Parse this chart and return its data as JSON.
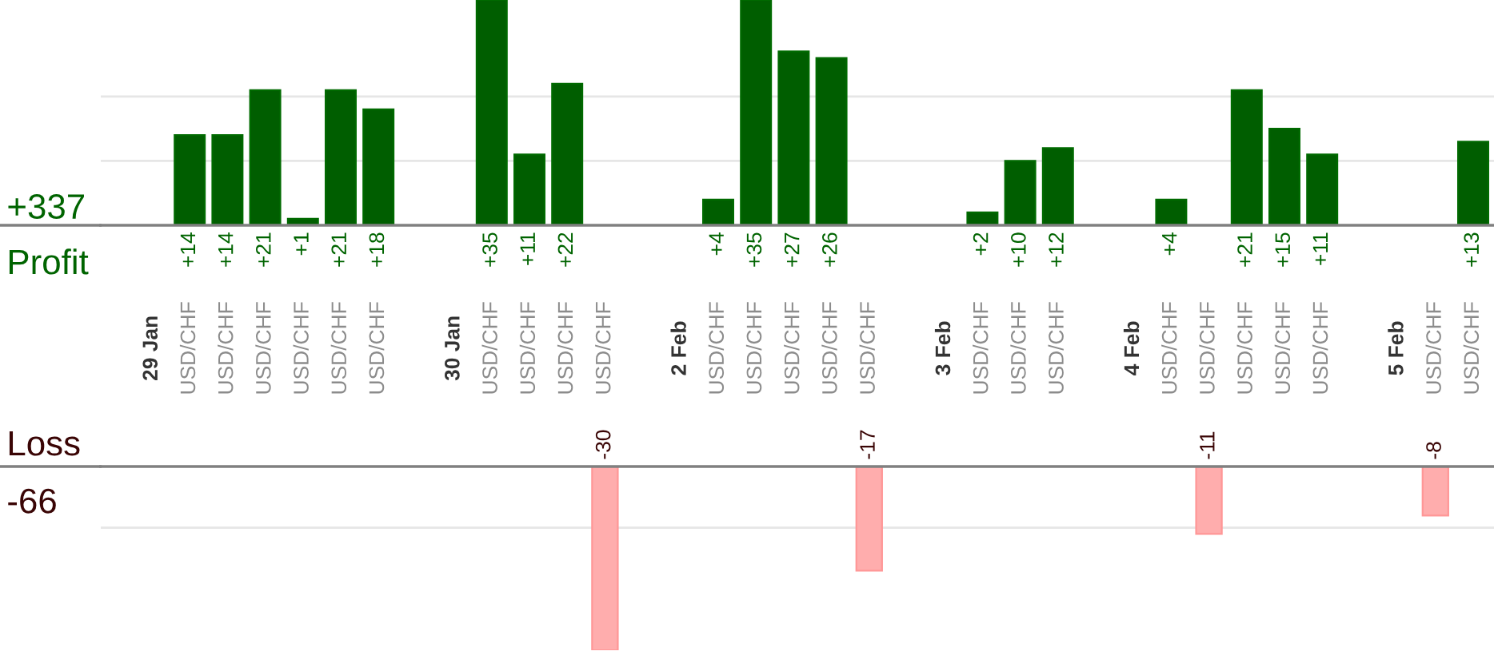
{
  "chart_data": [
    {
      "type": "bar",
      "title": "Profit",
      "annotations": [
        "+337"
      ],
      "categories": [
        "29 Jan",
        "USD/CHF",
        "USD/CHF",
        "USD/CHF",
        "USD/CHF",
        "USD/CHF",
        "USD/CHF",
        null,
        "30 Jan",
        "USD/CHF",
        "USD/CHF",
        "USD/CHF",
        "USD/CHF",
        null,
        "2 Feb",
        "USD/CHF",
        "USD/CHF",
        "USD/CHF",
        "USD/CHF",
        "USD/CHF",
        null,
        "3 Feb",
        "USD/CHF",
        "USD/CHF",
        "USD/CHF",
        null,
        "4 Feb",
        "USD/CHF",
        "USD/CHF",
        "USD/CHF",
        "USD/CHF",
        "USD/CHF",
        null,
        "5 Feb",
        "USD/CHF",
        "USD/CHF"
      ],
      "values": [
        null,
        14,
        14,
        21,
        1,
        21,
        18,
        null,
        null,
        35,
        11,
        22,
        null,
        null,
        null,
        4,
        35,
        27,
        26,
        null,
        null,
        null,
        2,
        10,
        12,
        null,
        null,
        4,
        null,
        21,
        15,
        11,
        null,
        null,
        null,
        13
      ],
      "value_labels": [
        null,
        "+14",
        "+14",
        "+21",
        "+1",
        "+21",
        "+18",
        null,
        null,
        "+35",
        "+11",
        "+22",
        null,
        null,
        null,
        "+4",
        "+35",
        "+27",
        "+26",
        null,
        null,
        null,
        "+2",
        "+10",
        "+12",
        null,
        null,
        "+4",
        null,
        "+21",
        "+15",
        "+11",
        null,
        null,
        null,
        "+13"
      ],
      "color": "#005e00",
      "ref_lines": [
        {
          "axis": "y",
          "value": 10,
          "color": "#e6e6e6"
        },
        {
          "axis": "y",
          "value": 20,
          "color": "#e6e6e6"
        }
      ],
      "tick_labels": "x"
    },
    {
      "type": "bar",
      "title": "Loss",
      "annotations": [
        "-66"
      ],
      "categories": [
        "29 Jan",
        "USD/CHF",
        "USD/CHF",
        "USD/CHF",
        "USD/CHF",
        "USD/CHF",
        "USD/CHF",
        null,
        "30 Jan",
        "USD/CHF",
        "USD/CHF",
        "USD/CHF",
        "USD/CHF",
        null,
        "2 Feb",
        "USD/CHF",
        "USD/CHF",
        "USD/CHF",
        "USD/CHF",
        "USD/CHF",
        null,
        "3 Feb",
        "USD/CHF",
        "USD/CHF",
        "USD/CHF",
        null,
        "4 Feb",
        "USD/CHF",
        "USD/CHF",
        "USD/CHF",
        "USD/CHF",
        "USD/CHF",
        null,
        "5 Feb",
        "USD/CHF",
        "USD/CHF"
      ],
      "values": [
        null,
        null,
        null,
        null,
        null,
        null,
        null,
        null,
        null,
        null,
        null,
        null,
        -30,
        null,
        null,
        null,
        null,
        null,
        null,
        -17,
        null,
        null,
        null,
        null,
        null,
        null,
        null,
        null,
        -11,
        null,
        null,
        null,
        null,
        null,
        -8,
        null
      ],
      "data_labels": true,
      "color": "#ffadad",
      "ref_lines": [
        {
          "axis": "y",
          "value": -10,
          "color": "#e6e6e6"
        }
      ],
      "tick_labels": false
    }
  ]
}
